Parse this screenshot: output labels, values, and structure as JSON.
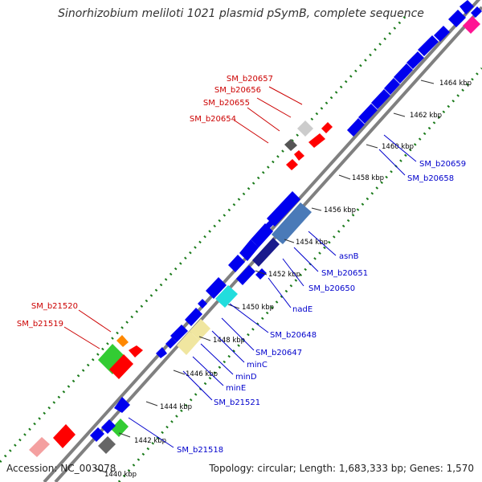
{
  "title": "Sinorhizobium meliloti 1021 plasmid pSymB, complete sequence",
  "footer": {
    "accession": "Accession: NC_003078",
    "topology": "Topology: circular; Length: 1,683,333 bp; Genes: 1,570"
  },
  "colors": {
    "backbone": "#808080",
    "dots": "#1a7a1a",
    "label_red": "#cc0000",
    "label_blue": "#0000cc",
    "gene_blue": "#0000ee",
    "gene_red": "#ff0000"
  },
  "ticks": [
    {
      "label": "1440 kbp"
    },
    {
      "label": "1442 kbp"
    },
    {
      "label": "1444 kbp"
    },
    {
      "label": "1446 kbp"
    },
    {
      "label": "1448 kbp"
    },
    {
      "label": "1450 kbp"
    },
    {
      "label": "1452 kbp"
    },
    {
      "label": "1454 kbp"
    },
    {
      "label": "1456 kbp"
    },
    {
      "label": "1458 kbp"
    },
    {
      "label": "1460 kbp"
    },
    {
      "label": "1462 kbp"
    },
    {
      "label": "1464 kbp"
    }
  ],
  "gene_labels_red": [
    "SM_b20657",
    "SM_b20656",
    "SM_b20655",
    "SM_b20654",
    "SM_b21520",
    "SM_b21519"
  ],
  "gene_labels_blue": [
    "SM_b20659",
    "SM_b20658",
    "asnB",
    "SM_b20651",
    "SM_b20650",
    "nadE",
    "SM_b20648",
    "SM_b20647",
    "minC",
    "minD",
    "minE",
    "SM_b21521",
    "SM_b21518"
  ]
}
